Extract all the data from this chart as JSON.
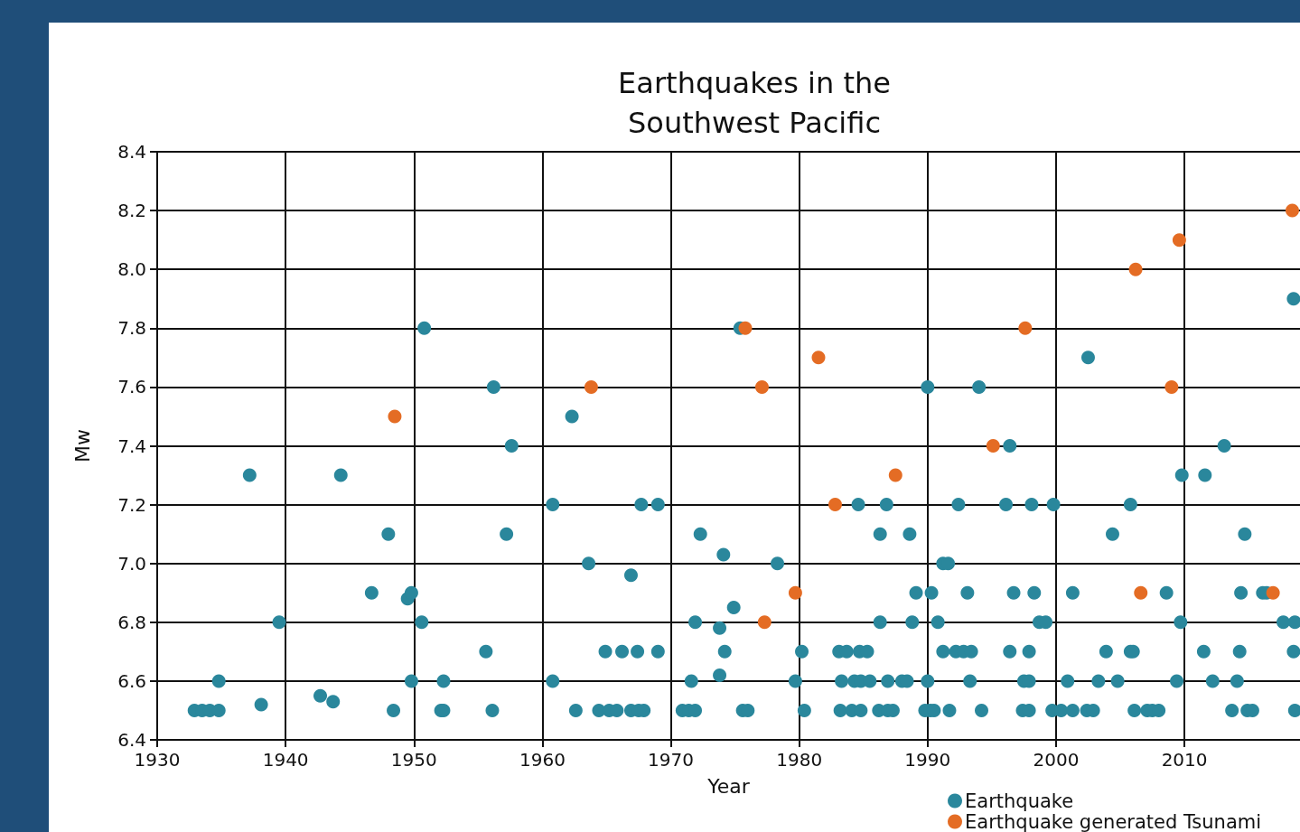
{
  "chart_data": {
    "type": "scatter",
    "title": "Earthquakes in the\nSouthwest Pacific",
    "xlabel": "Year",
    "ylabel": "Mw",
    "xlim": [
      1930,
      2019
    ],
    "xticks": [
      1930,
      1940,
      1950,
      1960,
      1970,
      1980,
      1990,
      2000,
      2010
    ],
    "ylim": [
      6.4,
      8.4
    ],
    "yticks": [
      {
        "value": 6.4,
        "label": "6.4"
      },
      {
        "value": 6.6,
        "label": "6.6"
      },
      {
        "value": 6.8,
        "label": "6.8"
      },
      {
        "value": 7.0,
        "label": "7.0"
      },
      {
        "value": 7.2,
        "label": "7.2"
      },
      {
        "value": 7.4,
        "label": "7.4"
      },
      {
        "value": 7.6,
        "label": "7.6"
      },
      {
        "value": 7.8,
        "label": "7.8"
      },
      {
        "value": 8.0,
        "label": "8.0"
      },
      {
        "value": 8.2,
        "label": "8.2"
      },
      {
        "value": 8.4,
        "label": "8.4"
      }
    ],
    "grid": true,
    "legend": "bottom right",
    "marker": "circle",
    "series": [
      {
        "name": "Earthquake",
        "color": "#2a879c",
        "x": [
          1932.9,
          1933.5,
          1934.1,
          1934.8,
          1948.4,
          1952.1,
          1952.3,
          1956.1,
          1962.6,
          1964.4,
          1965.2,
          1965.8,
          1966.9,
          1967.5,
          1967.9,
          1970.9,
          1971.4,
          1971.9,
          1975.6,
          1976.0,
          1980.4,
          1983.2,
          1984.1,
          1984.8,
          1986.2,
          1986.9,
          1987.3,
          1989.8,
          1990.2,
          1990.5,
          1991.7,
          1994.2,
          1997.4,
          1997.9,
          1999.7,
          2000.4,
          2001.3,
          2002.4,
          2002.9,
          2006.1,
          2007.1,
          2007.5,
          2008.0,
          2013.7,
          2014.9,
          2015.3,
          2018.6,
          1938.1,
          1942.7,
          1943.7,
          1934.8,
          1949.8,
          1952.3,
          1960.8,
          1971.6,
          1973.8,
          1979.7,
          1983.3,
          1984.3,
          1984.8,
          1985.5,
          1986.9,
          1988.0,
          1988.4,
          1990.0,
          1993.3,
          1997.5,
          1997.9,
          2000.9,
          2003.3,
          2004.8,
          2009.4,
          2012.2,
          2014.1,
          1955.6,
          1964.9,
          1966.2,
          1967.4,
          1969.0,
          1974.2,
          1980.2,
          1983.1,
          1983.7,
          1984.7,
          1985.3,
          1991.2,
          1992.2,
          1992.8,
          1993.4,
          1996.4,
          1997.9,
          2003.9,
          2005.8,
          2006.0,
          2011.5,
          2014.3,
          2018.5,
          1939.5,
          1950.6,
          1971.9,
          1986.3,
          1988.8,
          1990.8,
          1998.7,
          1999.2,
          2009.7,
          2017.7,
          2018.6,
          1973.8,
          1949.5,
          1946.7,
          1949.8,
          1989.1,
          1990.3,
          1993.1,
          1996.7,
          1998.3,
          2001.3,
          2008.6,
          2014.4,
          2016.1,
          2016.4,
          1966.9,
          1974.9,
          1963.6,
          1978.3,
          1991.2,
          1991.6,
          1974.1,
          1948.0,
          1957.2,
          1972.3,
          1986.3,
          1988.6,
          2004.4,
          2014.7,
          1960.8,
          1967.7,
          1969.0,
          1984.6,
          1986.8,
          1992.4,
          1996.1,
          1998.1,
          1999.8,
          2005.8,
          1937.2,
          1944.3,
          2009.8,
          2011.6,
          1957.6,
          1996.4,
          2013.1,
          1962.3,
          1956.2,
          1990.0,
          1994.0,
          2002.5,
          1950.8,
          1975.4,
          2018.5
        ],
        "values": [
          6.5,
          6.5,
          6.5,
          6.5,
          6.5,
          6.5,
          6.5,
          6.5,
          6.5,
          6.5,
          6.5,
          6.5,
          6.5,
          6.5,
          6.5,
          6.5,
          6.5,
          6.5,
          6.5,
          6.5,
          6.5,
          6.5,
          6.5,
          6.5,
          6.5,
          6.5,
          6.5,
          6.5,
          6.5,
          6.5,
          6.5,
          6.5,
          6.5,
          6.5,
          6.5,
          6.5,
          6.5,
          6.5,
          6.5,
          6.5,
          6.5,
          6.5,
          6.5,
          6.5,
          6.5,
          6.5,
          6.5,
          6.52,
          6.55,
          6.53,
          6.6,
          6.6,
          6.6,
          6.6,
          6.6,
          6.62,
          6.6,
          6.6,
          6.6,
          6.6,
          6.6,
          6.6,
          6.6,
          6.6,
          6.6,
          6.6,
          6.6,
          6.6,
          6.6,
          6.6,
          6.6,
          6.6,
          6.6,
          6.6,
          6.7,
          6.7,
          6.7,
          6.7,
          6.7,
          6.7,
          6.7,
          6.7,
          6.7,
          6.7,
          6.7,
          6.7,
          6.7,
          6.7,
          6.7,
          6.7,
          6.7,
          6.7,
          6.7,
          6.7,
          6.7,
          6.7,
          6.7,
          6.8,
          6.8,
          6.8,
          6.8,
          6.8,
          6.8,
          6.8,
          6.8,
          6.8,
          6.8,
          6.8,
          6.78,
          6.88,
          6.9,
          6.9,
          6.9,
          6.9,
          6.9,
          6.9,
          6.9,
          6.9,
          6.9,
          6.9,
          6.9,
          6.9,
          6.96,
          6.85,
          7.0,
          7.0,
          7.0,
          7.0,
          7.03,
          7.1,
          7.1,
          7.1,
          7.1,
          7.1,
          7.1,
          7.1,
          7.2,
          7.2,
          7.2,
          7.2,
          7.2,
          7.2,
          7.2,
          7.2,
          7.2,
          7.2,
          7.3,
          7.3,
          7.3,
          7.3,
          7.4,
          7.4,
          7.4,
          7.5,
          7.6,
          7.6,
          7.6,
          7.7,
          7.8,
          7.8,
          7.9
        ]
      },
      {
        "name": "Earthquake generated Tsunami",
        "color": "#e46c24",
        "x": [
          1948.5,
          1963.8,
          1975.8,
          1977.1,
          1977.3,
          1981.5,
          1979.7,
          1982.8,
          1987.5,
          1995.1,
          1997.6,
          2006.2,
          2009.6,
          2009.0,
          2006.6,
          2016.9,
          2018.4
        ],
        "values": [
          7.5,
          7.6,
          7.8,
          7.6,
          6.8,
          7.7,
          6.9,
          7.2,
          7.3,
          7.4,
          7.8,
          8.0,
          8.1,
          7.6,
          6.9,
          6.9,
          8.2
        ]
      }
    ]
  }
}
